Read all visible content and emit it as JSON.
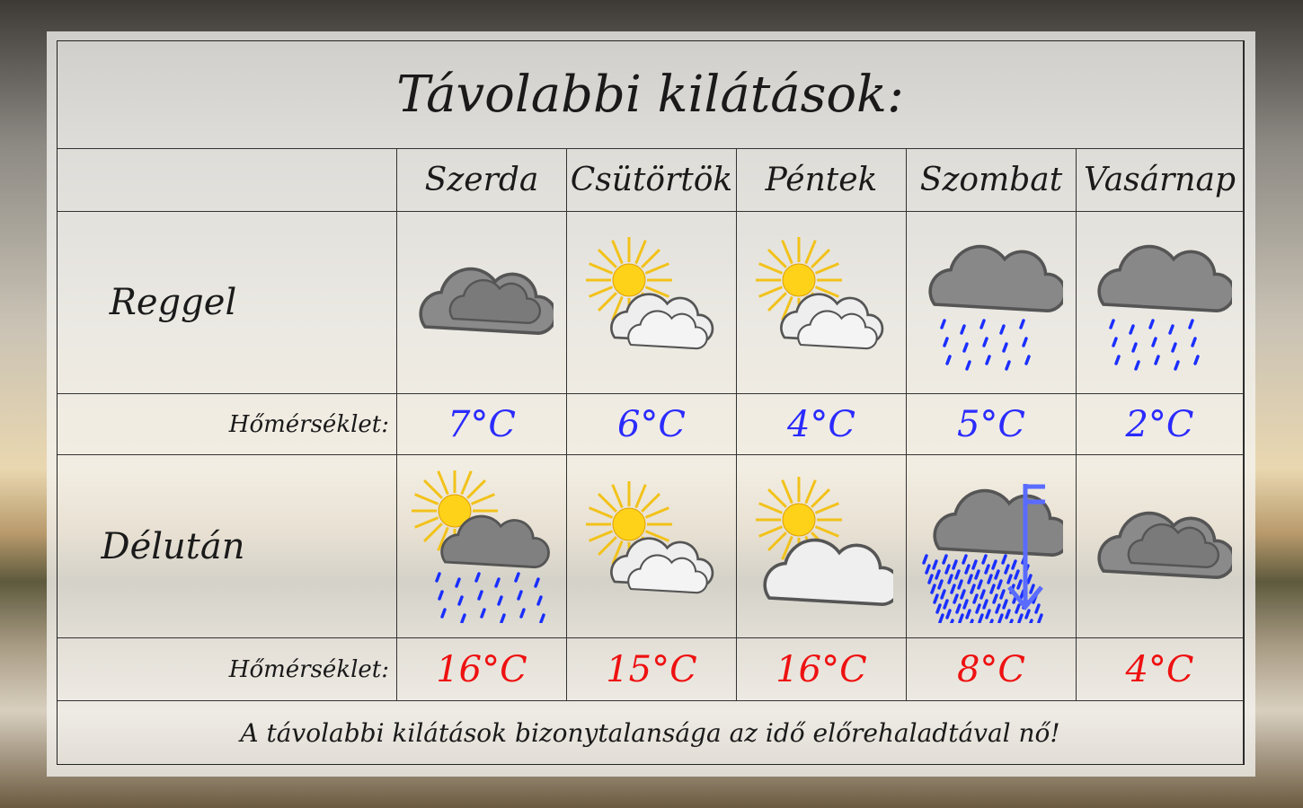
{
  "title": "Távolabbi kilátások:",
  "days": [
    "Szerda",
    "Csütörtök",
    "Péntek",
    "Szombat",
    "Vasárnap"
  ],
  "morning": {
    "label": "Reggel",
    "temp_label": "Hőmérséklet:",
    "icons": [
      "cloudy-icon",
      "partly-sunny-icon",
      "partly-sunny-icon",
      "rain-icon",
      "rain-icon"
    ],
    "temps": [
      "7°C",
      "6°C",
      "4°C",
      "5°C",
      "2°C"
    ],
    "temp_color": "#2b2bff"
  },
  "afternoon": {
    "label": "Délután",
    "temp_label": "Hőmérséklet:",
    "icons": [
      "sun-cloud-rain-icon",
      "partly-sunny-icon",
      "sunny-cloudy-icon",
      "heavy-rain-wind-icon",
      "cloudy-icon"
    ],
    "temps": [
      "16°C",
      "15°C",
      "16°C",
      "8°C",
      "4°C"
    ],
    "temp_color": "#ee1111"
  },
  "footer": "A távolabbi kilátások bizonytalansága az idő előrehaladtával nő!"
}
